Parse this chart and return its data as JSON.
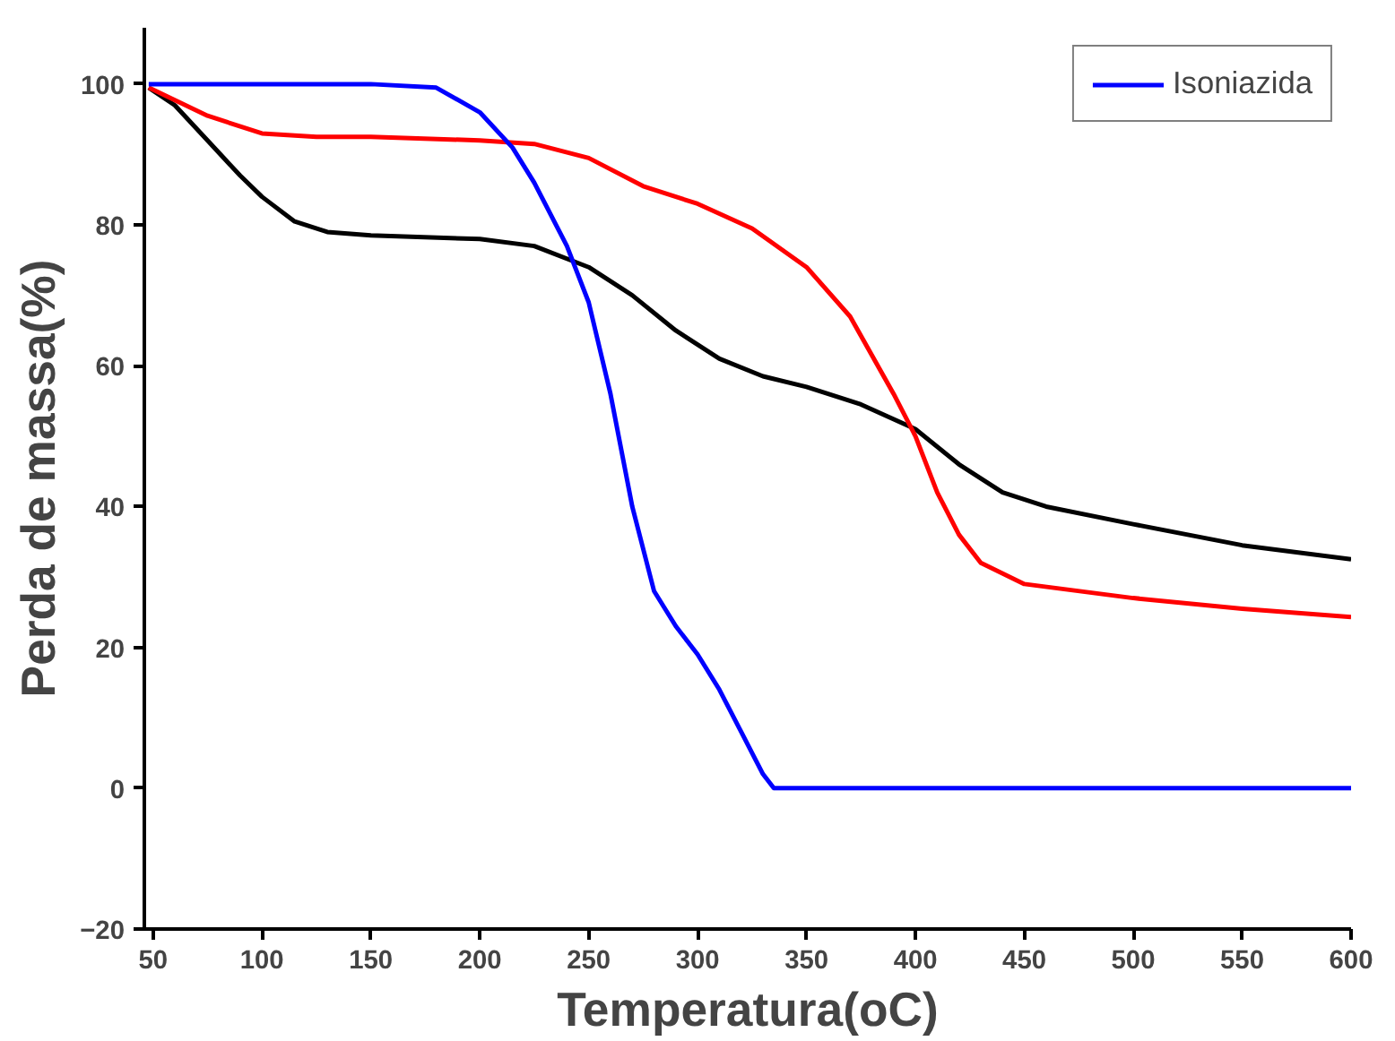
{
  "chart_data": {
    "type": "line",
    "xlabel": "Temperatura(oC)",
    "ylabel": "Perda de massa(%)",
    "xlim": [
      46,
      600
    ],
    "ylim": [
      -20,
      108
    ],
    "xticks": [
      50,
      100,
      150,
      200,
      250,
      300,
      350,
      400,
      450,
      500,
      550,
      600
    ],
    "yticks": [
      -20,
      0,
      20,
      40,
      60,
      80,
      100
    ],
    "grid": false,
    "legend": "top right",
    "marker": "none",
    "line_style": "solid",
    "series": [
      {
        "color": "#000000",
        "x": [
          48,
          60,
          75,
          90,
          100,
          115,
          130,
          150,
          200,
          225,
          250,
          270,
          290,
          310,
          330,
          350,
          375,
          400,
          420,
          440,
          460,
          500,
          550,
          600
        ],
        "values": [
          99.5,
          97,
          92,
          87,
          84,
          80.5,
          79,
          78.5,
          78,
          77,
          74,
          70,
          65,
          61,
          58.5,
          57,
          54.5,
          51,
          46,
          42,
          40,
          37.5,
          34.5,
          32.5
        ]
      },
      {
        "color": "#ff0000",
        "x": [
          48,
          75,
          100,
          125,
          150,
          200,
          225,
          250,
          275,
          300,
          325,
          350,
          370,
          390,
          400,
          410,
          420,
          430,
          450,
          500,
          550,
          600
        ],
        "values": [
          99.5,
          95.5,
          93,
          92.5,
          92.5,
          92,
          91.5,
          89.5,
          85.5,
          83,
          79.5,
          74,
          67,
          56,
          50,
          42,
          36,
          32,
          29,
          27,
          25.5,
          24.3
        ]
      },
      {
        "name": "Isoniazida",
        "color": "#0000ff",
        "x": [
          48,
          150,
          180,
          200,
          215,
          225,
          240,
          250,
          260,
          270,
          280,
          290,
          300,
          310,
          320,
          330,
          335,
          400,
          600
        ],
        "values": [
          100,
          100,
          99.5,
          96,
          91,
          86,
          77,
          69,
          56,
          40,
          28,
          23,
          19,
          14,
          8,
          2,
          0,
          0,
          0
        ]
      }
    ]
  }
}
